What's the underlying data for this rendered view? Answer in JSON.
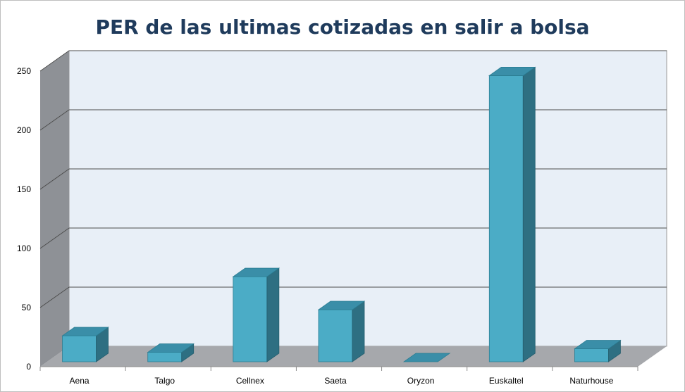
{
  "chart_data": {
    "type": "bar",
    "title": "PER de las ultimas cotizadas en salir a bolsa",
    "categories": [
      "Aena",
      "Talgo",
      "Cellnex",
      "Saeta",
      "Oryzon",
      "Euskaltel",
      "Naturhouse"
    ],
    "values": [
      22,
      8,
      72,
      44,
      0,
      242,
      11
    ],
    "ylim": [
      0,
      250
    ],
    "yticks": [
      "0",
      "50",
      "100",
      "150",
      "200",
      "250"
    ],
    "ytick_values": [
      0,
      50,
      100,
      150,
      200,
      250
    ],
    "grid": true,
    "legend": "none",
    "colors": {
      "bar_front": "#4bacc6",
      "bar_top": "#3a8ea8",
      "bar_side": "#2e6f82",
      "back_wall": "#e8eff7",
      "side_wall": "#8e9196",
      "floor": "#a6a8ac",
      "grid": "#4d4d4d",
      "title": "#1f3b5c"
    }
  }
}
